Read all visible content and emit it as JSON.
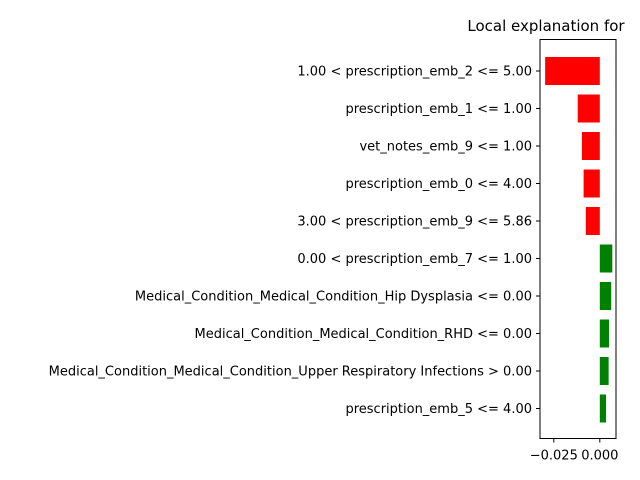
{
  "chart_data": {
    "type": "bar",
    "orientation": "horizontal",
    "title": "Local explanation for",
    "xlabel": "",
    "ylabel": "",
    "xlim": [
      -0.0325,
      0.0088
    ],
    "xticks": [
      {
        "value": -0.025,
        "label": "−0.025"
      },
      {
        "value": 0.0,
        "label": "0.000"
      }
    ],
    "categories": [
      "1.00 < prescription_emb_2 <= 5.00",
      "prescription_emb_1 <= 1.00",
      "vet_notes_emb_9 <= 1.00",
      "prescription_emb_0 <= 4.00",
      "3.00 < prescription_emb_9 <= 5.86",
      "0.00 < prescription_emb_7 <= 1.00",
      "Medical_Condition_Medical_Condition_Hip Dysplasia <= 0.00",
      "Medical_Condition_Medical_Condition_RHD <= 0.00",
      "Medical_Condition_Medical_Condition_Upper Respiratory Infections > 0.00",
      "prescription_emb_5 <= 4.00"
    ],
    "values": [
      -0.0297,
      -0.012,
      -0.0097,
      -0.0088,
      -0.0076,
      0.0068,
      0.0062,
      0.005,
      0.0048,
      0.0034
    ],
    "colors": {
      "negative": "#ff0000",
      "positive": "#008000"
    },
    "grid": false,
    "legend": "none"
  }
}
